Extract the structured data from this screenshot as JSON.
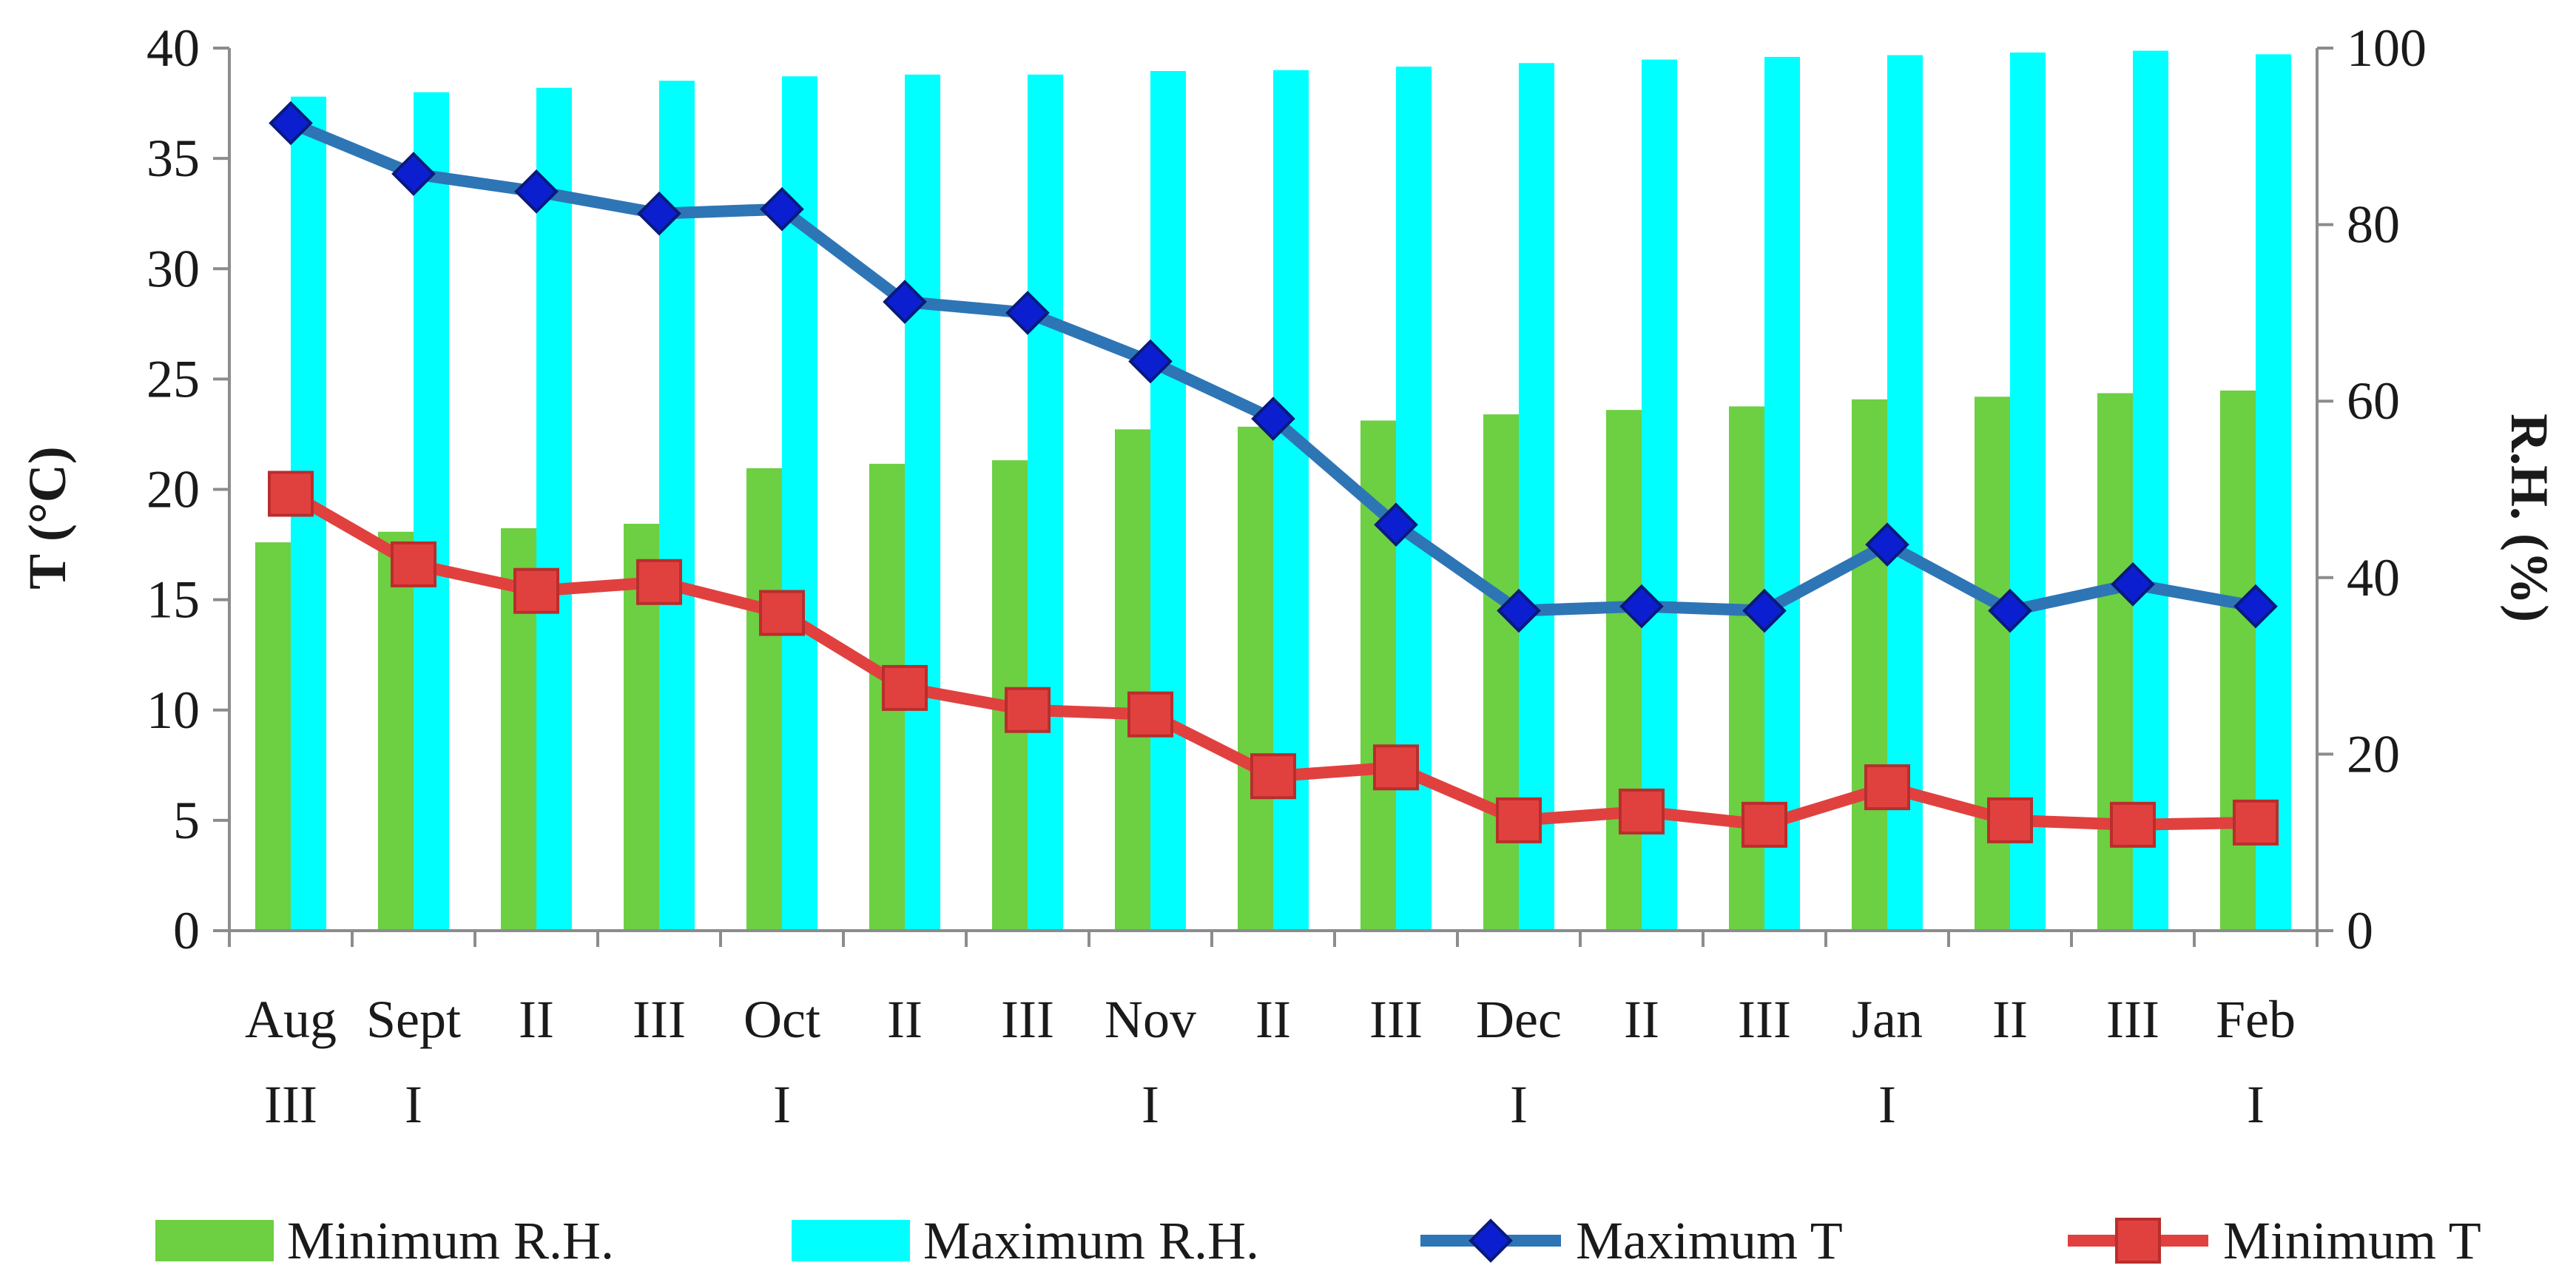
{
  "chart_data": {
    "type": "bar+line",
    "categories": [
      [
        "Aug",
        "III"
      ],
      [
        "Sept",
        "I"
      ],
      [
        "II",
        ""
      ],
      [
        "III",
        ""
      ],
      [
        "Oct",
        "I"
      ],
      [
        "II",
        ""
      ],
      [
        "III",
        ""
      ],
      [
        "Nov",
        "I"
      ],
      [
        "II",
        ""
      ],
      [
        "III",
        ""
      ],
      [
        "Dec",
        "I"
      ],
      [
        "II",
        ""
      ],
      [
        "III",
        ""
      ],
      [
        "Jan",
        "I"
      ],
      [
        "II",
        ""
      ],
      [
        "III",
        ""
      ],
      [
        "Feb",
        "I"
      ]
    ],
    "y_left": {
      "label": "T (°C)",
      "min": 0,
      "max": 40,
      "step": 5
    },
    "y_right": {
      "label": "R.H. (%)",
      "min": 0,
      "max": 100,
      "step": 20
    },
    "series": [
      {
        "name": "Minimum R.H.",
        "kind": "bar",
        "axis": "right",
        "color": "#6dcf42",
        "values": [
          44,
          45.2,
          45.6,
          46.1,
          52.4,
          52.9,
          53.3,
          56.8,
          57.1,
          57.8,
          58.5,
          59,
          59.4,
          60.2,
          60.5,
          60.9,
          61.2
        ]
      },
      {
        "name": "Maximum R.H.",
        "kind": "bar",
        "axis": "right",
        "color": "#00ffff",
        "values": [
          94.5,
          95,
          95.5,
          96.3,
          96.8,
          97,
          97,
          97.4,
          97.5,
          97.9,
          98.3,
          98.7,
          99,
          99.2,
          99.5,
          99.7,
          99.3
        ]
      },
      {
        "name": "Maximum T",
        "kind": "line",
        "axis": "left",
        "color": "#2e75b6",
        "marker": "diamond",
        "marker_color": "#0b1fd1",
        "values": [
          36.6,
          34.3,
          33.5,
          32.5,
          32.7,
          28.5,
          28,
          25.8,
          23.2,
          18.4,
          14.5,
          14.7,
          14.5,
          17.5,
          14.5,
          15.7,
          14.7
        ]
      },
      {
        "name": "Minimum T",
        "kind": "line",
        "axis": "left",
        "color": "#e0413f",
        "marker": "square",
        "marker_color": "#e0413f",
        "values": [
          19.8,
          16.6,
          15.4,
          15.8,
          14.4,
          11,
          10,
          9.8,
          7,
          7.4,
          5,
          5.4,
          4.8,
          6.5,
          5,
          4.8,
          4.9
        ]
      }
    ],
    "legend": [
      "Minimum R.H.",
      "Maximum R.H.",
      "Maximum T",
      "Minimum T"
    ],
    "legend_position": "bottom"
  }
}
